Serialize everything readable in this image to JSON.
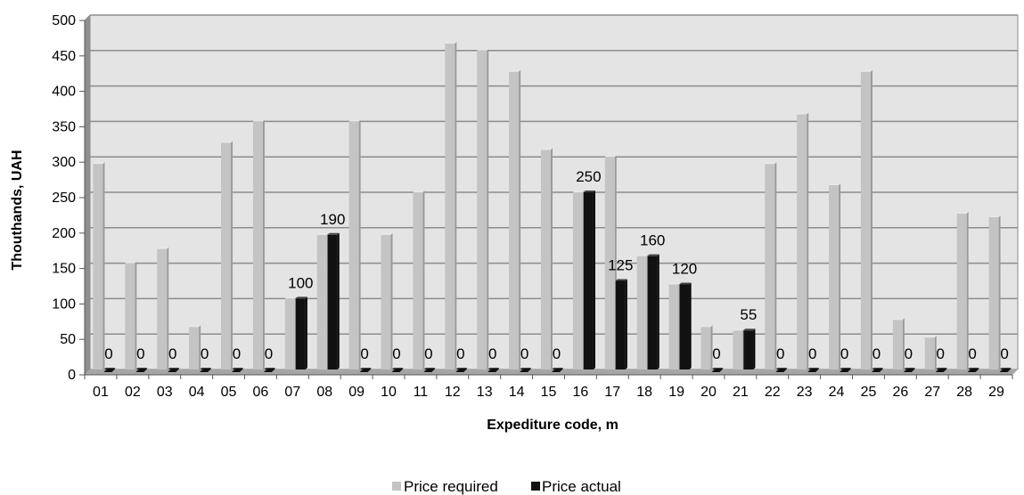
{
  "chart_data": {
    "type": "bar",
    "title": "",
    "xlabel": "Expediture code, m",
    "ylabel": "Thouthands, UAH",
    "ylim": [
      0,
      500
    ],
    "yticks": [
      0,
      50,
      100,
      150,
      200,
      250,
      300,
      350,
      400,
      450,
      500
    ],
    "grid": true,
    "legend_position": "bottom",
    "categories": [
      "01",
      "02",
      "03",
      "04",
      "05",
      "06",
      "07",
      "08",
      "09",
      "10",
      "11",
      "12",
      "13",
      "14",
      "15",
      "16",
      "17",
      "18",
      "19",
      "20",
      "21",
      "22",
      "23",
      "24",
      "25",
      "26",
      "27",
      "28",
      "29"
    ],
    "series": [
      {
        "name": "Price required",
        "color": "#c4c4c4",
        "values": [
          290,
          150,
          170,
          60,
          320,
          350,
          100,
          190,
          350,
          190,
          250,
          460,
          450,
          420,
          310,
          250,
          300,
          160,
          120,
          60,
          55,
          290,
          360,
          260,
          420,
          70,
          45,
          220,
          215
        ]
      },
      {
        "name": "Price actual",
        "color": "#111111",
        "values": [
          0,
          0,
          0,
          0,
          0,
          0,
          100,
          190,
          0,
          0,
          0,
          0,
          0,
          0,
          0,
          250,
          125,
          160,
          120,
          0,
          55,
          0,
          0,
          0,
          0,
          0,
          0,
          0,
          0
        ],
        "data_labels": [
          "0",
          "0",
          "0",
          "0",
          "0",
          "0",
          "100",
          "190",
          "0",
          "0",
          "0",
          "0",
          "0",
          "0",
          "0",
          "250",
          "125",
          "160",
          "120",
          "0",
          "55",
          "0",
          "0",
          "0",
          "0",
          "0",
          "0",
          "0",
          "0"
        ]
      }
    ]
  }
}
